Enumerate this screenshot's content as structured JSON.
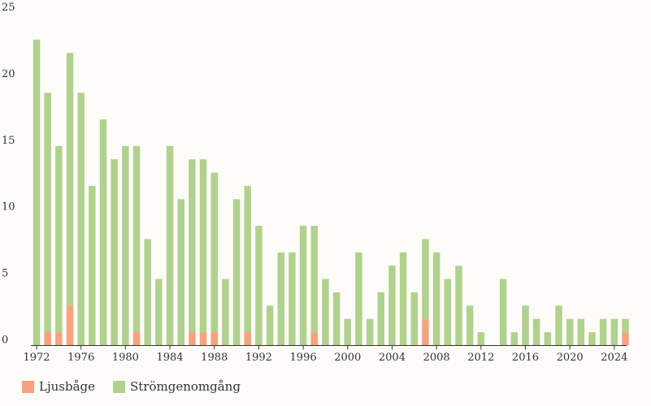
{
  "chart_data": {
    "type": "bar",
    "stacked": true,
    "x": [
      1972,
      1973,
      1974,
      1975,
      1976,
      1977,
      1978,
      1979,
      1980,
      1981,
      1982,
      1983,
      1984,
      1985,
      1986,
      1987,
      1988,
      1989,
      1990,
      1991,
      1992,
      1993,
      1994,
      1995,
      1996,
      1997,
      1998,
      1999,
      2000,
      2001,
      2002,
      2003,
      2004,
      2005,
      2006,
      2007,
      2008,
      2009,
      2010,
      2011,
      2012,
      2013,
      2014,
      2015,
      2016,
      2017,
      2018,
      2019,
      2020,
      2021,
      2022,
      2023,
      2024,
      2025
    ],
    "x_ticks": [
      "1972",
      "1976",
      "1980",
      "1984",
      "1988",
      "1992",
      "1996",
      "2000",
      "2004",
      "2008",
      "2012",
      "2016",
      "2020",
      "2024"
    ],
    "y_ticks": [
      "0",
      "5",
      "10",
      "15",
      "20",
      "25"
    ],
    "ylim": [
      0,
      25
    ],
    "series": [
      {
        "name": "Ljusbåge",
        "color": "#f7a27f",
        "values": [
          0,
          1,
          1,
          3,
          0,
          0,
          0,
          0,
          0,
          1,
          0,
          0,
          0,
          0,
          1,
          1,
          1,
          0,
          0,
          1,
          0,
          0,
          0,
          0,
          0,
          1,
          0,
          0,
          0,
          0,
          0,
          0,
          0,
          0,
          0,
          2,
          0,
          0,
          0,
          0,
          0,
          0,
          0,
          0,
          0,
          0,
          0,
          0,
          0,
          0,
          0,
          0,
          0,
          1
        ]
      },
      {
        "name": "Strömgenomgång",
        "color": "#b1d18e",
        "values": [
          23,
          18,
          14,
          19,
          19,
          12,
          17,
          14,
          15,
          14,
          8,
          5,
          15,
          11,
          13,
          13,
          12,
          5,
          11,
          11,
          9,
          3,
          7,
          7,
          9,
          8,
          5,
          4,
          2,
          7,
          2,
          4,
          6,
          7,
          4,
          6,
          7,
          5,
          6,
          3,
          1,
          0,
          5,
          1,
          3,
          2,
          1,
          3,
          2,
          2,
          1,
          2,
          2,
          1
        ]
      }
    ],
    "legend_position": "bottom-left",
    "grid": false
  }
}
